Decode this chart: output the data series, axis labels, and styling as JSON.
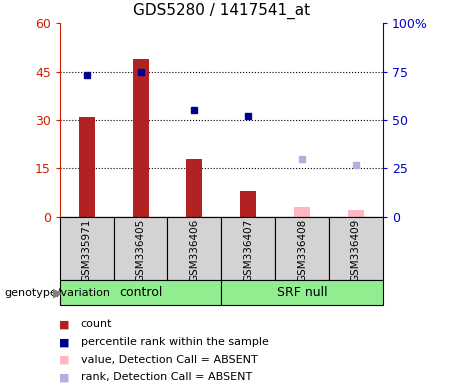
{
  "title": "GDS5280 / 1417541_at",
  "samples": [
    "GSM335971",
    "GSM336405",
    "GSM336406",
    "GSM336407",
    "GSM336408",
    "GSM336409"
  ],
  "count_present": [
    31,
    49,
    18,
    8,
    null,
    null
  ],
  "count_absent": [
    null,
    null,
    null,
    null,
    3,
    2
  ],
  "rank_present": [
    73,
    75,
    55,
    52,
    null,
    null
  ],
  "rank_absent": [
    null,
    null,
    null,
    null,
    30,
    27
  ],
  "ylim_left": [
    0,
    60
  ],
  "ylim_right": [
    0,
    100
  ],
  "yticks_left": [
    0,
    15,
    30,
    45,
    60
  ],
  "yticks_right": [
    0,
    25,
    50,
    75,
    100
  ],
  "ytick_labels_left": [
    "0",
    "15",
    "30",
    "45",
    "60"
  ],
  "ytick_labels_right": [
    "0",
    "25",
    "50",
    "75",
    "100%"
  ],
  "color_bar_present": "#b22222",
  "color_bar_absent": "#ffb6c1",
  "color_rank_present": "#00008b",
  "color_rank_absent": "#b0b0dd",
  "color_left_axis": "#cc2200",
  "color_right_axis": "#0000cc",
  "bar_width": 0.3,
  "group_label": "genotype/variation",
  "legend_items": [
    {
      "label": "count",
      "color": "#b22222"
    },
    {
      "label": "percentile rank within the sample",
      "color": "#00008b"
    },
    {
      "label": "value, Detection Call = ABSENT",
      "color": "#ffb6c1"
    },
    {
      "label": "rank, Detection Call = ABSENT",
      "color": "#b0b0dd"
    }
  ]
}
